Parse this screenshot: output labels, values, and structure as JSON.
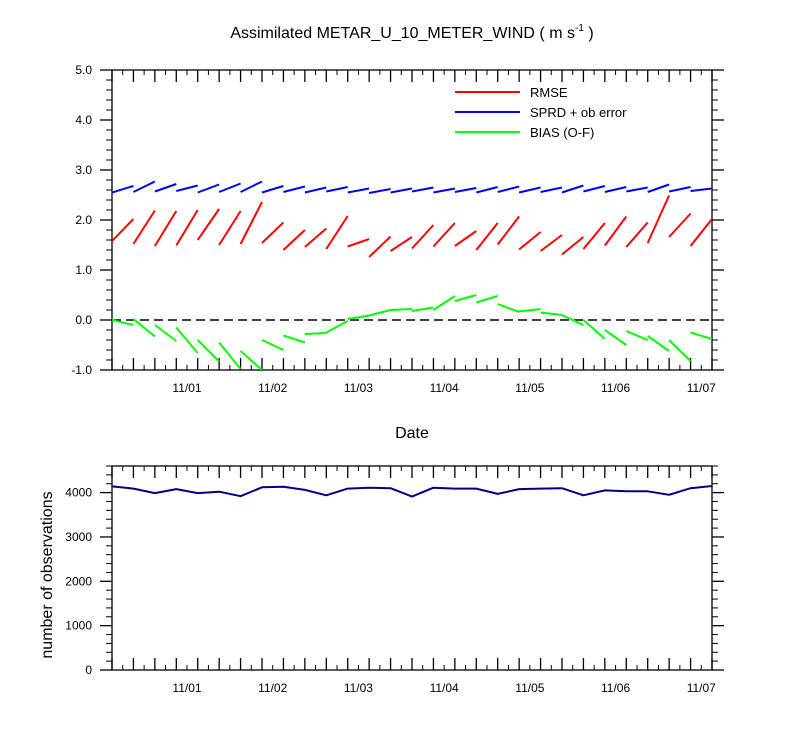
{
  "chart_data": [
    {
      "type": "line",
      "title": "Assimilated METAR_U_10_METER_WIND",
      "title_units_base": "m s",
      "title_units_exponent": "-1",
      "xlabel": "Date",
      "ylabel": "",
      "ylim": [
        -1.0,
        5.0
      ],
      "yticks": [
        "5.0",
        "4.0",
        "3.0",
        "2.0",
        "1.0",
        "0.0",
        "-1.0"
      ],
      "xlim": [
        0,
        28
      ],
      "xtick_labels": [
        "11/01",
        "11/02",
        "11/03",
        "11/04",
        "11/05",
        "11/06",
        "11/07"
      ],
      "xtick_positions": [
        3.5,
        7.5,
        11.5,
        15.5,
        19.5,
        23.5,
        27.5
      ],
      "zero_line": 0.0,
      "legend_position": "top-right",
      "series": [
        {
          "name": "RMSE",
          "color": "#ff0000",
          "segments": [
            [
              [
                0,
                1.58
              ],
              [
                1,
                2.02
              ]
            ],
            [
              [
                1,
                1.52
              ],
              [
                2,
                2.19
              ]
            ],
            [
              [
                2,
                1.48
              ],
              [
                3,
                2.18
              ]
            ],
            [
              [
                3,
                1.49
              ],
              [
                4,
                2.2
              ]
            ],
            [
              [
                4,
                1.6
              ],
              [
                5,
                2.22
              ]
            ],
            [
              [
                5,
                1.5
              ],
              [
                6,
                2.18
              ]
            ],
            [
              [
                6,
                1.52
              ],
              [
                7,
                2.36
              ]
            ],
            [
              [
                7,
                1.54
              ],
              [
                8,
                1.95
              ]
            ],
            [
              [
                8,
                1.4
              ],
              [
                9,
                1.8
              ]
            ],
            [
              [
                9,
                1.46
              ],
              [
                10,
                1.83
              ]
            ],
            [
              [
                10,
                1.42
              ],
              [
                11,
                2.08
              ]
            ],
            [
              [
                11,
                1.47
              ],
              [
                12,
                1.62
              ]
            ],
            [
              [
                12,
                1.26
              ],
              [
                13,
                1.67
              ]
            ],
            [
              [
                13,
                1.38
              ],
              [
                14,
                1.66
              ]
            ],
            [
              [
                14,
                1.43
              ],
              [
                15,
                1.9
              ]
            ],
            [
              [
                15,
                1.47
              ],
              [
                16,
                1.94
              ]
            ],
            [
              [
                16,
                1.48
              ],
              [
                17,
                1.78
              ]
            ],
            [
              [
                17,
                1.4
              ],
              [
                18,
                1.94
              ]
            ],
            [
              [
                18,
                1.51
              ],
              [
                19,
                2.07
              ]
            ],
            [
              [
                19,
                1.41
              ],
              [
                20,
                1.76
              ]
            ],
            [
              [
                20,
                1.38
              ],
              [
                21,
                1.7
              ]
            ],
            [
              [
                21,
                1.31
              ],
              [
                22,
                1.66
              ]
            ],
            [
              [
                22,
                1.42
              ],
              [
                23,
                1.94
              ]
            ],
            [
              [
                23,
                1.49
              ],
              [
                24,
                2.07
              ]
            ],
            [
              [
                24,
                1.46
              ],
              [
                25,
                1.95
              ]
            ],
            [
              [
                25,
                1.54
              ],
              [
                26,
                2.49
              ]
            ],
            [
              [
                26,
                1.66
              ],
              [
                27,
                2.13
              ]
            ],
            [
              [
                27,
                1.48
              ],
              [
                28,
                2.02
              ]
            ]
          ]
        },
        {
          "name": "SPRD + ob error",
          "color": "#0000ff",
          "segments": [
            [
              [
                0,
                2.55
              ],
              [
                1,
                2.68
              ]
            ],
            [
              [
                1,
                2.56
              ],
              [
                2,
                2.77
              ]
            ],
            [
              [
                2,
                2.57
              ],
              [
                3,
                2.72
              ]
            ],
            [
              [
                3,
                2.58
              ],
              [
                4,
                2.69
              ]
            ],
            [
              [
                4,
                2.55
              ],
              [
                5,
                2.71
              ]
            ],
            [
              [
                5,
                2.56
              ],
              [
                6,
                2.73
              ]
            ],
            [
              [
                6,
                2.56
              ],
              [
                7,
                2.77
              ]
            ],
            [
              [
                7,
                2.55
              ],
              [
                8,
                2.68
              ]
            ],
            [
              [
                8,
                2.56
              ],
              [
                9,
                2.67
              ]
            ],
            [
              [
                9,
                2.55
              ],
              [
                10,
                2.65
              ]
            ],
            [
              [
                10,
                2.57
              ],
              [
                11,
                2.66
              ]
            ],
            [
              [
                11,
                2.55
              ],
              [
                12,
                2.63
              ]
            ],
            [
              [
                12,
                2.54
              ],
              [
                13,
                2.62
              ]
            ],
            [
              [
                13,
                2.55
              ],
              [
                14,
                2.63
              ]
            ],
            [
              [
                14,
                2.57
              ],
              [
                15,
                2.65
              ]
            ],
            [
              [
                15,
                2.55
              ],
              [
                16,
                2.63
              ]
            ],
            [
              [
                16,
                2.56
              ],
              [
                17,
                2.64
              ]
            ],
            [
              [
                17,
                2.55
              ],
              [
                18,
                2.66
              ]
            ],
            [
              [
                18,
                2.56
              ],
              [
                19,
                2.67
              ]
            ],
            [
              [
                19,
                2.55
              ],
              [
                20,
                2.65
              ]
            ],
            [
              [
                20,
                2.56
              ],
              [
                21,
                2.65
              ]
            ],
            [
              [
                21,
                2.55
              ],
              [
                22,
                2.69
              ]
            ],
            [
              [
                22,
                2.57
              ],
              [
                23,
                2.68
              ]
            ],
            [
              [
                23,
                2.56
              ],
              [
                24,
                2.66
              ]
            ],
            [
              [
                24,
                2.57
              ],
              [
                25,
                2.65
              ]
            ],
            [
              [
                25,
                2.56
              ],
              [
                26,
                2.71
              ]
            ],
            [
              [
                26,
                2.57
              ],
              [
                27,
                2.66
              ]
            ],
            [
              [
                27,
                2.58
              ],
              [
                28,
                2.63
              ]
            ]
          ]
        },
        {
          "name": "BIAS (O-F)",
          "color": "#00ff00",
          "segments": [
            [
              [
                0,
                0.0
              ],
              [
                1,
                -0.1
              ]
            ],
            [
              [
                1,
                0.02
              ],
              [
                2,
                -0.33
              ]
            ],
            [
              [
                2,
                -0.1
              ],
              [
                3,
                -0.42
              ]
            ],
            [
              [
                3,
                -0.15
              ],
              [
                4,
                -0.66
              ]
            ],
            [
              [
                4,
                -0.4
              ],
              [
                5,
                -0.83
              ]
            ],
            [
              [
                5,
                -0.45
              ],
              [
                6,
                -0.98
              ]
            ],
            [
              [
                6,
                -0.62
              ],
              [
                7,
                -1.0
              ]
            ],
            [
              [
                7,
                -0.4
              ],
              [
                8,
                -0.6
              ]
            ],
            [
              [
                8,
                -0.31
              ],
              [
                9,
                -0.45
              ]
            ],
            [
              [
                9,
                -0.28
              ],
              [
                10,
                -0.26
              ]
            ],
            [
              [
                10,
                -0.25
              ],
              [
                11,
                -0.02
              ]
            ],
            [
              [
                11,
                0.02
              ],
              [
                12,
                0.09
              ]
            ],
            [
              [
                12,
                0.09
              ],
              [
                13,
                0.2
              ]
            ],
            [
              [
                13,
                0.2
              ],
              [
                14,
                0.22
              ]
            ],
            [
              [
                14,
                0.18
              ],
              [
                15,
                0.25
              ]
            ],
            [
              [
                15,
                0.2
              ],
              [
                16,
                0.48
              ]
            ],
            [
              [
                16,
                0.38
              ],
              [
                17,
                0.5
              ]
            ],
            [
              [
                17,
                0.35
              ],
              [
                18,
                0.48
              ]
            ],
            [
              [
                18,
                0.32
              ],
              [
                19,
                0.16
              ]
            ],
            [
              [
                19,
                0.17
              ],
              [
                20,
                0.22
              ]
            ],
            [
              [
                20,
                0.15
              ],
              [
                21,
                0.1
              ]
            ],
            [
              [
                21,
                0.1
              ],
              [
                22,
                -0.1
              ]
            ],
            [
              [
                22,
                0.0
              ],
              [
                23,
                -0.38
              ]
            ],
            [
              [
                23,
                -0.2
              ],
              [
                24,
                -0.5
              ]
            ],
            [
              [
                24,
                -0.22
              ],
              [
                25,
                -0.4
              ]
            ],
            [
              [
                25,
                -0.32
              ],
              [
                26,
                -0.62
              ]
            ],
            [
              [
                26,
                -0.4
              ],
              [
                27,
                -0.82
              ]
            ],
            [
              [
                27,
                -0.25
              ],
              [
                28,
                -0.38
              ]
            ]
          ]
        }
      ]
    },
    {
      "type": "line",
      "title": "",
      "xlabel": "",
      "ylabel": "number of observations",
      "ylim": [
        0,
        4600
      ],
      "yticks": [
        "4000",
        "3000",
        "2000",
        "1000",
        "0"
      ],
      "xlim": [
        0,
        28
      ],
      "xtick_labels": [
        "11/01",
        "11/02",
        "11/03",
        "11/04",
        "11/05",
        "11/06",
        "11/07"
      ],
      "xtick_positions": [
        3.5,
        7.5,
        11.5,
        15.5,
        19.5,
        23.5,
        27.5
      ],
      "series": [
        {
          "name": "",
          "color": "#000080",
          "x": [
            0,
            1,
            2,
            3,
            4,
            5,
            6,
            7,
            8,
            9,
            10,
            11,
            12,
            13,
            14,
            15,
            16,
            17,
            18,
            19,
            20,
            21,
            22,
            23,
            24,
            25,
            26,
            27,
            28
          ],
          "values": [
            4140,
            4090,
            3990,
            4080,
            3990,
            4020,
            3920,
            4120,
            4130,
            4060,
            3940,
            4090,
            4110,
            4100,
            3910,
            4110,
            4090,
            4090,
            3970,
            4080,
            4090,
            4100,
            3940,
            4050,
            4030,
            4030,
            3950,
            4100,
            4150
          ]
        }
      ]
    }
  ]
}
